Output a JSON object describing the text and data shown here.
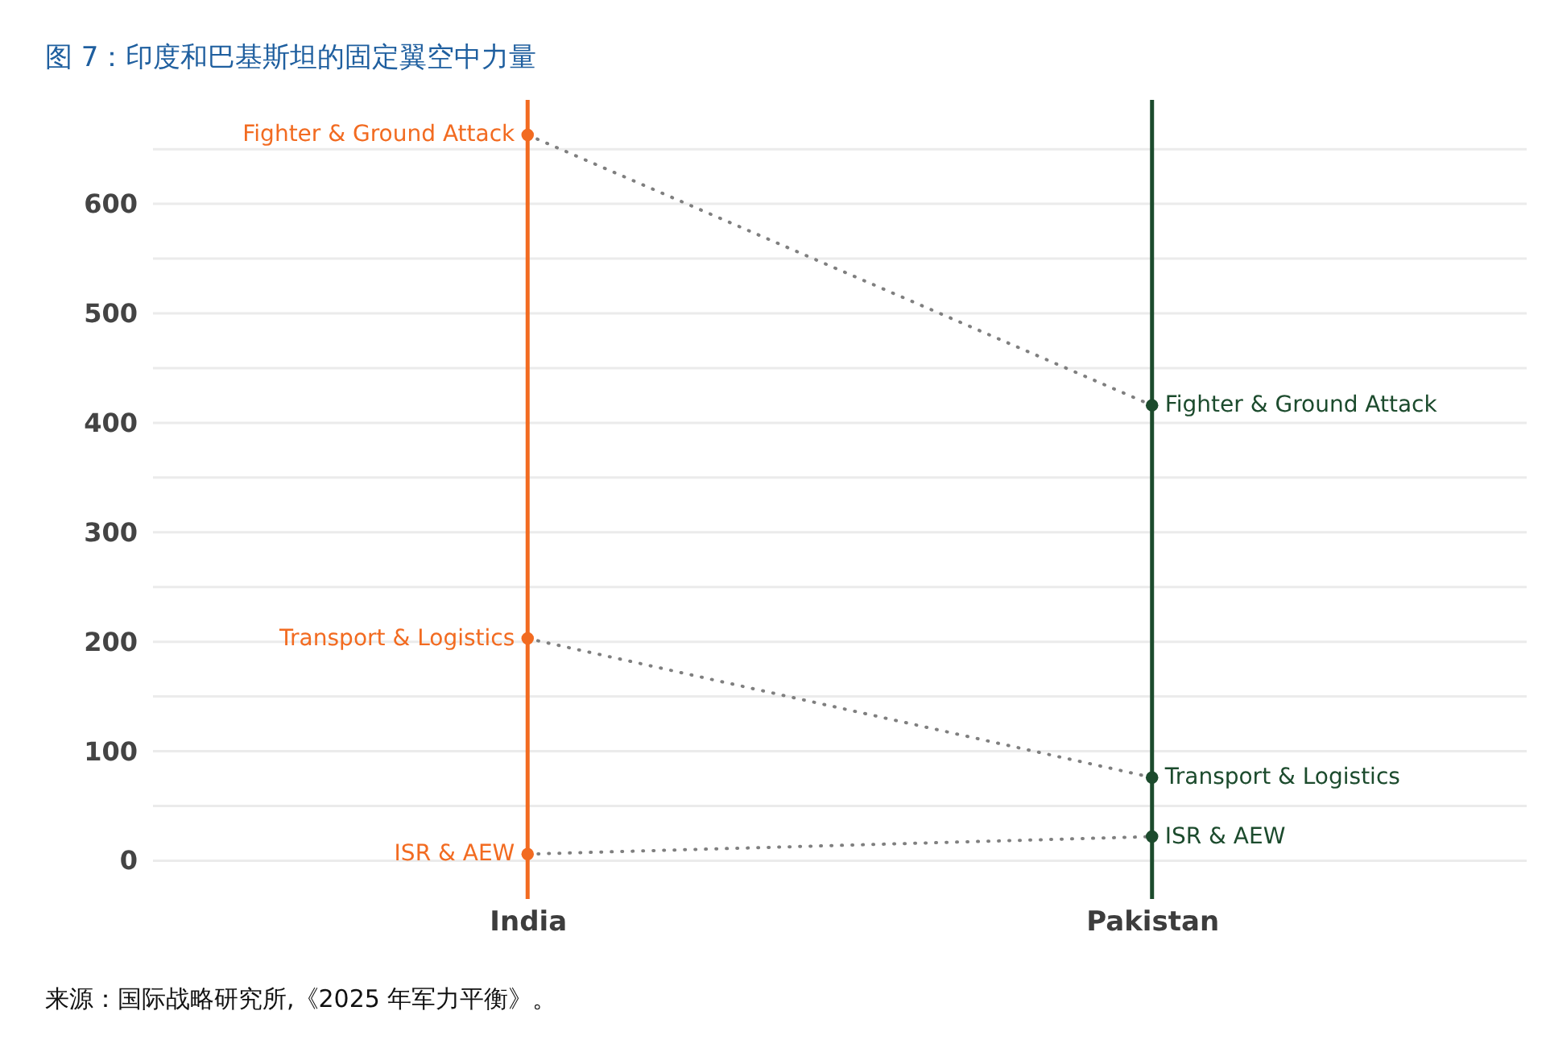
{
  "chart_data": {
    "type": "line",
    "title": "图 7：印度和巴基斯坦的固定翼空中力量",
    "annotations": [
      "来源：国际战略研究所,《2025 年军力平衡》。"
    ],
    "categories": [
      "India",
      "Pakistan"
    ],
    "series": [
      {
        "name": "Fighter & Ground Attack",
        "color": "#7f7f7f",
        "colors": [
          "#f26b21",
          "#1c4b2d"
        ],
        "values": [
          663,
          416
        ]
      },
      {
        "name": "Transport & Logistics",
        "color": "#7f7f7f",
        "colors": [
          "#f26b21",
          "#1c4b2d"
        ],
        "values": [
          203,
          76
        ]
      },
      {
        "name": "ISR & AEW",
        "color": "#7f7f7f",
        "colors": [
          "#f26b21",
          "#1c4b2d"
        ],
        "values": [
          6,
          22
        ]
      }
    ],
    "ylim": [
      -35,
      695
    ],
    "yticks": [
      0,
      {
        "value": 50,
        "label": null
      },
      100,
      {
        "value": 150,
        "label": null
      },
      200,
      {
        "value": 250,
        "label": null
      },
      300,
      {
        "value": 350,
        "label": null
      },
      400,
      {
        "value": 450,
        "label": null
      },
      500,
      {
        "value": 550,
        "label": null
      },
      600,
      {
        "value": 650,
        "label": null
      }
    ],
    "grid": "y",
    "marker": "circle",
    "line_style": "dotted",
    "ref_lines": [
      {
        "axis": "x",
        "value": "India",
        "color": "#f26b21"
      },
      {
        "axis": "x",
        "value": "Pakistan",
        "color": "#1c4b2d"
      }
    ]
  }
}
